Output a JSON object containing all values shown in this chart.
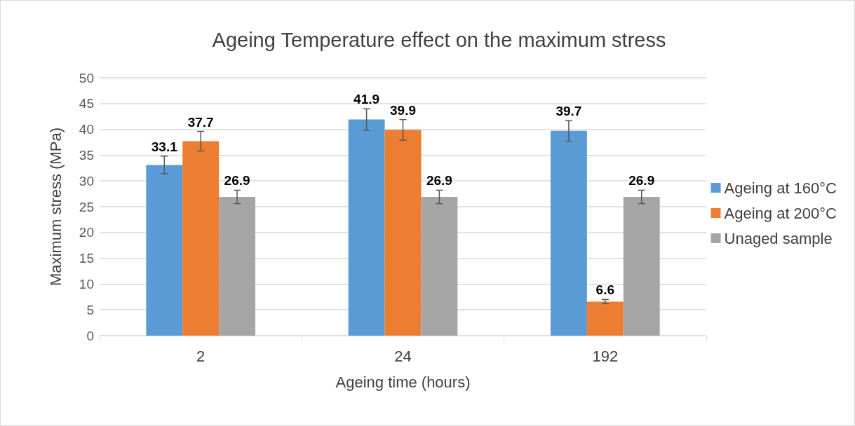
{
  "chart_data": {
    "type": "bar",
    "title": "Ageing Temperature effect on the maximum stress",
    "xlabel": "Ageing time (hours)",
    "ylabel": "Maximum stress (MPa)",
    "categories": [
      "2",
      "24",
      "192"
    ],
    "series": [
      {
        "name": "Ageing at 160°C",
        "color": "#5b9bd5",
        "values": [
          33.1,
          41.9,
          39.7
        ],
        "errors": [
          1.7,
          2.1,
          2.0
        ]
      },
      {
        "name": "Ageing at 200°C",
        "color": "#ed7d31",
        "values": [
          37.7,
          39.9,
          6.6
        ],
        "errors": [
          1.9,
          2.0,
          0.4
        ]
      },
      {
        "name": "Unaged sample",
        "color": "#a5a5a5",
        "values": [
          26.9,
          26.9,
          26.9
        ],
        "errors": [
          1.3,
          1.3,
          1.3
        ]
      }
    ],
    "ylim": [
      0,
      50
    ],
    "yticks": [
      0,
      5,
      10,
      15,
      20,
      25,
      30,
      35,
      40,
      45,
      50
    ],
    "grid": "y",
    "legend": "right",
    "data_labels": true
  }
}
